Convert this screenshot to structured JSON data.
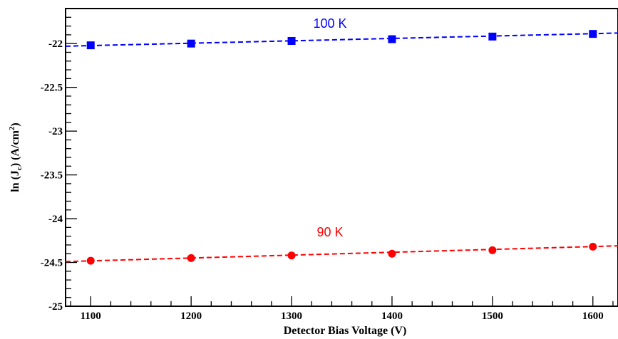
{
  "chart_data": {
    "type": "scatter",
    "xlabel": "Detector Bias Voltage (V)",
    "ylabel": {
      "pre": "ln (J",
      "sub": "c",
      "mid": ") (A/cm",
      "sup": "2",
      "post": ")"
    },
    "xlim": [
      1075,
      1625
    ],
    "ylim": [
      -25,
      -21.6
    ],
    "x_ticks": [
      1100,
      1200,
      1300,
      1400,
      1500,
      1600
    ],
    "x_tick_labels": [
      "1100",
      "1200",
      "1300",
      "1400",
      "1500",
      "1600"
    ],
    "y_ticks": [
      -22,
      -22.5,
      -23,
      -23.5,
      -24,
      -24.5,
      -25
    ],
    "y_tick_labels": [
      "-22",
      "-22.5",
      "-23",
      "-23.5",
      "-24",
      "-24.5",
      "-25"
    ],
    "grid": false,
    "series": [
      {
        "name": "100 K",
        "color": "#0000ff",
        "marker": "square",
        "line": "dashed",
        "x": [
          1100,
          1200,
          1300,
          1400,
          1500,
          1600
        ],
        "y": [
          -22.02,
          -22.0,
          -21.97,
          -21.95,
          -21.92,
          -21.89
        ],
        "fit": {
          "x": [
            1075,
            1625
          ],
          "y": [
            -22.03,
            -21.88
          ]
        }
      },
      {
        "name": "90 K",
        "color": "#ff0000",
        "marker": "circle",
        "line": "dashed",
        "x": [
          1100,
          1200,
          1300,
          1400,
          1500,
          1600
        ],
        "y": [
          -24.48,
          -24.45,
          -24.42,
          -24.4,
          -24.36,
          -24.32
        ],
        "fit": {
          "x": [
            1075,
            1625
          ],
          "y": [
            -24.49,
            -24.31
          ]
        }
      }
    ]
  }
}
